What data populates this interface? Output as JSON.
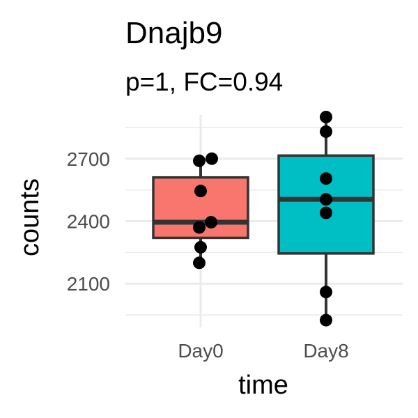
{
  "chart_data": {
    "type": "box",
    "title": "Dnajb9",
    "subtitle": "p=1, FC=0.94",
    "xlabel": "time",
    "ylabel": "counts",
    "categories": [
      "Day0",
      "Day8"
    ],
    "ylim": [
      1890,
      2910
    ],
    "yticks": [
      2100,
      2400,
      2700
    ],
    "grid": true,
    "boxes": [
      {
        "category": "Day0",
        "color": "#F8766D",
        "whisker_low": 2200,
        "q1": 2320,
        "median": 2395,
        "q3": 2610,
        "whisker_high": 2700,
        "points": [
          2200,
          2275,
          2370,
          2395,
          2545,
          2690,
          2700
        ]
      },
      {
        "category": "Day8",
        "color": "#00BFC4",
        "whisker_low": 1925,
        "q1": 2245,
        "median": 2505,
        "q3": 2715,
        "whisker_high": 2900,
        "points": [
          1925,
          2060,
          2440,
          2505,
          2605,
          2830,
          2900
        ]
      }
    ]
  }
}
